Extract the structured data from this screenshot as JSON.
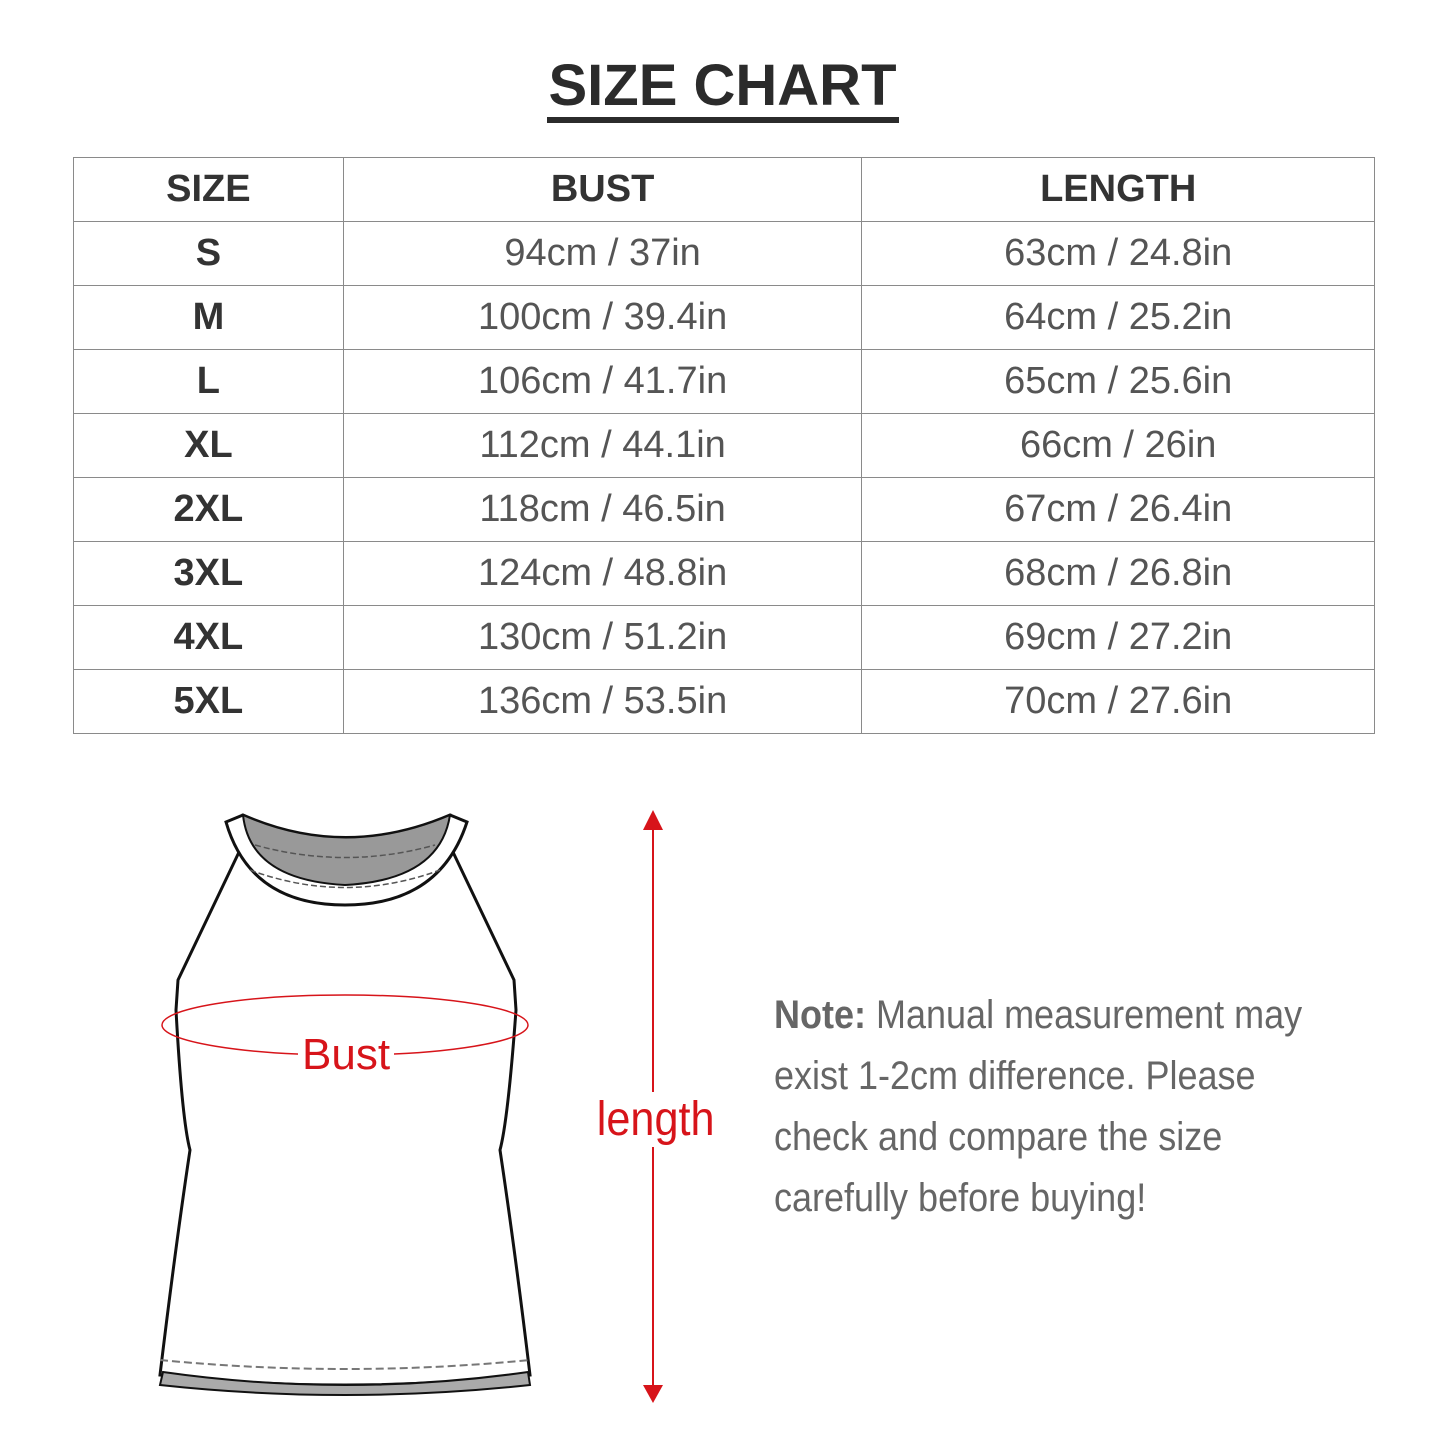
{
  "title": "SIZE CHART",
  "table": {
    "headers": [
      "SIZE",
      "BUST",
      "LENGTH"
    ],
    "rows": [
      {
        "size": "S",
        "bust": "94cm / 37in",
        "length": "63cm / 24.8in"
      },
      {
        "size": "M",
        "bust": "100cm / 39.4in",
        "length": "64cm / 25.2in"
      },
      {
        "size": "L",
        "bust": "106cm / 41.7in",
        "length": "65cm / 25.6in"
      },
      {
        "size": "XL",
        "bust": "112cm / 44.1in",
        "length": "66cm / 26in"
      },
      {
        "size": "2XL",
        "bust": "118cm / 46.5in",
        "length": "67cm / 26.4in"
      },
      {
        "size": "3XL",
        "bust": "124cm / 48.8in",
        "length": "68cm / 26.8in"
      },
      {
        "size": "4XL",
        "bust": "130cm / 51.2in",
        "length": "69cm / 27.2in"
      },
      {
        "size": "5XL",
        "bust": "136cm / 53.5in",
        "length": "70cm / 27.6in"
      }
    ]
  },
  "diagram": {
    "bust_label": "Bust",
    "length_label": "length",
    "accent_color": "#d7141a"
  },
  "note": {
    "label": "Note:",
    "text": " Manual measurement may exist 1-2cm difference. Please check and compare the size carefully before buying!"
  }
}
